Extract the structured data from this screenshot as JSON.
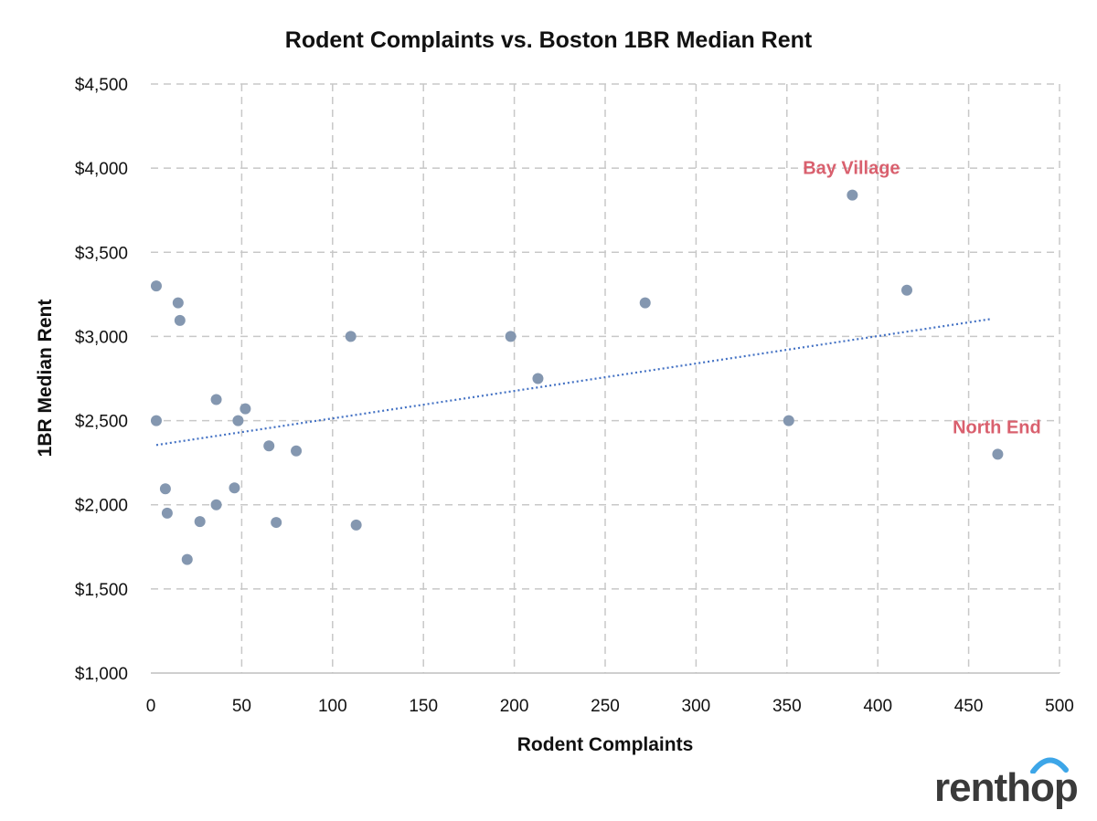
{
  "chart_data": {
    "type": "scatter",
    "title": "Rodent Complaints vs. Boston 1BR Median Rent",
    "xlabel": "Rodent Complaints",
    "ylabel": "1BR Median Rent",
    "xlim": [
      0,
      500
    ],
    "ylim": [
      1000,
      4500
    ],
    "x_ticks": [
      0,
      50,
      100,
      150,
      200,
      250,
      300,
      350,
      400,
      450,
      500
    ],
    "x_tick_labels": [
      "0",
      "50",
      "100",
      "150",
      "200",
      "250",
      "300",
      "350",
      "400",
      "450",
      "500"
    ],
    "y_ticks": [
      1000,
      1500,
      2000,
      2500,
      3000,
      3500,
      4000,
      4500
    ],
    "y_tick_labels": [
      "$1,000",
      "$1,500",
      "$2,000",
      "$2,500",
      "$3,000",
      "$3,500",
      "$4,000",
      "$4,500"
    ],
    "grid": true,
    "points": [
      {
        "x": 3,
        "y": 3300
      },
      {
        "x": 3,
        "y": 2500
      },
      {
        "x": 8,
        "y": 2095
      },
      {
        "x": 9,
        "y": 1950
      },
      {
        "x": 15,
        "y": 3200
      },
      {
        "x": 16,
        "y": 3095
      },
      {
        "x": 20,
        "y": 1675
      },
      {
        "x": 27,
        "y": 1900
      },
      {
        "x": 36,
        "y": 2000
      },
      {
        "x": 36,
        "y": 2625
      },
      {
        "x": 46,
        "y": 2100
      },
      {
        "x": 48,
        "y": 2500
      },
      {
        "x": 52,
        "y": 2570
      },
      {
        "x": 65,
        "y": 2350
      },
      {
        "x": 69,
        "y": 1895
      },
      {
        "x": 80,
        "y": 2320
      },
      {
        "x": 110,
        "y": 3000
      },
      {
        "x": 113,
        "y": 1880
      },
      {
        "x": 198,
        "y": 3000
      },
      {
        "x": 213,
        "y": 2750
      },
      {
        "x": 272,
        "y": 3200
      },
      {
        "x": 351,
        "y": 2500
      },
      {
        "x": 386,
        "y": 3840
      },
      {
        "x": 416,
        "y": 3275
      },
      {
        "x": 466,
        "y": 2300
      }
    ],
    "trendline": {
      "type": "linear",
      "from": {
        "x": 3,
        "y": 2355
      },
      "to": {
        "x": 463,
        "y": 3105
      }
    },
    "annotations": [
      {
        "text": "Bay Village",
        "x": 386,
        "y": 3840
      },
      {
        "text": "North End",
        "x": 466,
        "y": 2300
      }
    ],
    "colors": {
      "points": "#8497b0",
      "trendline": "#4472c4",
      "annotations": "#d9606e",
      "logo_accent": "#3da6e8"
    }
  },
  "logo": {
    "text": "renthop"
  }
}
